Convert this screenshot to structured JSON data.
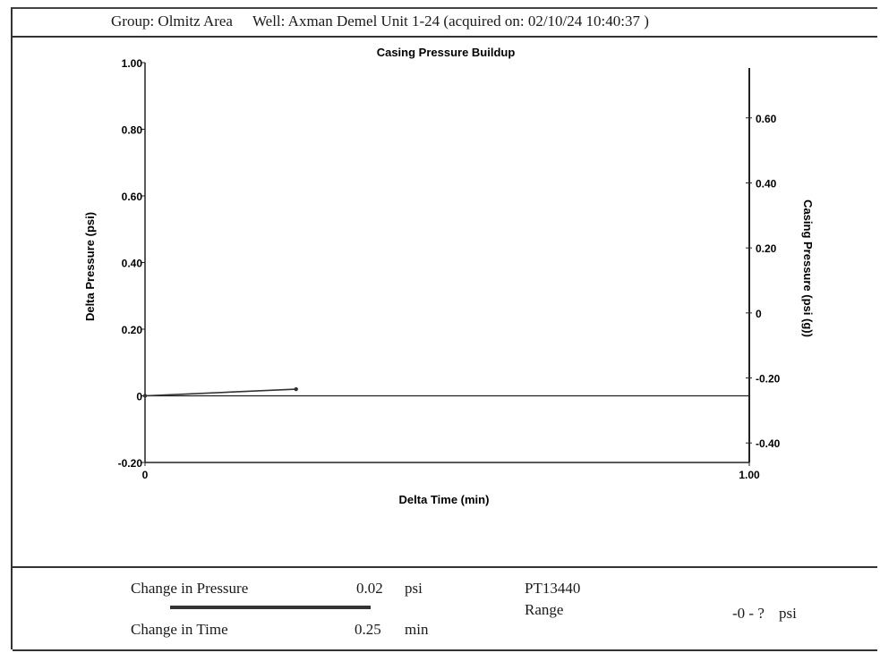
{
  "header": {
    "group": "Group: Olmitz Area",
    "well": "Well: Axman Demel Unit 1-24 (acquired on: 02/10/24 10:40:37 )"
  },
  "chart_data": {
    "type": "line",
    "title": "Casing Pressure Buildup",
    "xlabel": "Delta Time (min)",
    "ylabel": "Delta Pressure (psi)",
    "y2label": "Casing Pressure (psi (g))",
    "xlim": [
      0,
      1.0
    ],
    "ylim": [
      -0.2,
      1.0
    ],
    "y2lim": [
      -0.46,
      0.77
    ],
    "x_ticks": [
      "0",
      "1.00"
    ],
    "y_ticks": [
      "1.00",
      "0.80",
      "0.60",
      "0.40",
      "0.20",
      "0",
      "-0.20"
    ],
    "y2_ticks": [
      "0.60",
      "0.40",
      "0.20",
      "0",
      "-0.20",
      "-0.40"
    ],
    "grid": false,
    "series": [
      {
        "x": [
          0,
          0.25
        ],
        "y": [
          0,
          0.02
        ]
      }
    ]
  },
  "footer": {
    "change_pressure_label": "Change in Pressure",
    "change_pressure_value": "0.02",
    "change_pressure_unit": "psi",
    "change_time_label": "Change in Time",
    "change_time_value": "0.25",
    "change_time_unit": "min",
    "sensor": "PT13440",
    "range_label": "Range",
    "range_value": "-0 - ?",
    "range_unit": "psi"
  }
}
